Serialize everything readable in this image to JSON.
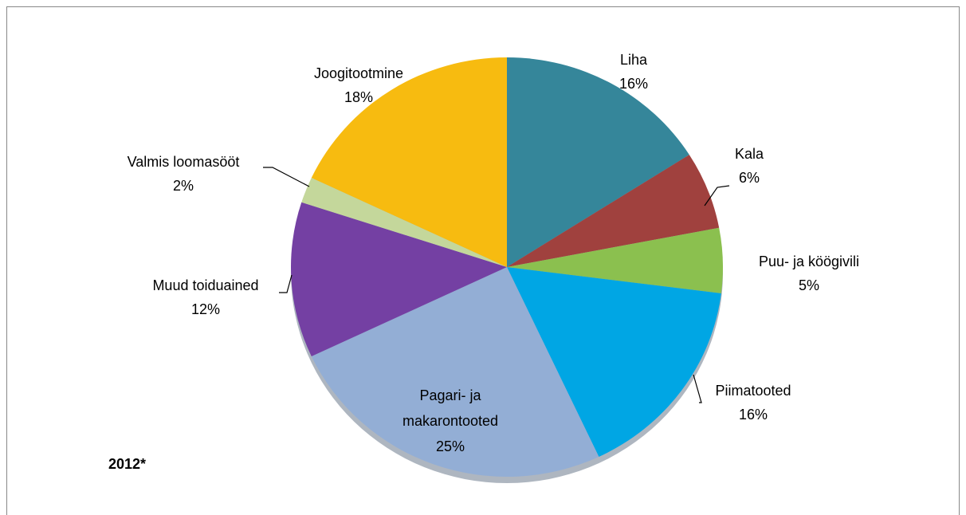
{
  "chart_data": {
    "type": "pie",
    "categories": [
      "Liha",
      "Kala",
      "Puu- ja köögivili",
      "Piimatooted",
      "Pagari- ja makarontooted",
      "Muud toiduained",
      "Valmis loomasööt",
      "Joogitootmine"
    ],
    "values": [
      16,
      6,
      5,
      16,
      25,
      12,
      2,
      18
    ],
    "value_labels": [
      "16%",
      "6%",
      "5%",
      "16%",
      "25%",
      "12%",
      "2%",
      "18%"
    ],
    "colors": [
      "#35869a",
      "#a0413e",
      "#8bc04f",
      "#00a6e4",
      "#93aed5",
      "#7440a3",
      "#c4d79b",
      "#f7bb10"
    ],
    "annotation": "2012*"
  }
}
